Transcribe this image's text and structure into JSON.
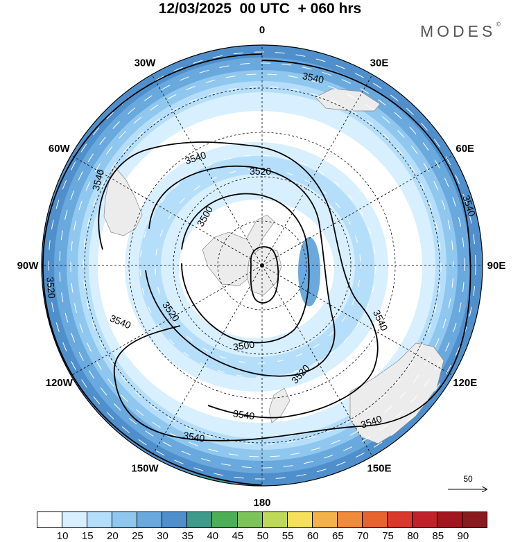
{
  "title": "12/03/2025  00 UTC  + 060 hrs",
  "logo": {
    "text": "MODES",
    "mark": "©"
  },
  "longitude_labels": [
    "0",
    "30E",
    "60E",
    "90E",
    "120E",
    "150E",
    "180",
    "150W",
    "120W",
    "90W",
    "60W",
    "30W"
  ],
  "contour_labels": {
    "c3540": "3540",
    "c3520": "3520",
    "c3500": "3500"
  },
  "reference_vector": {
    "label": "50"
  },
  "legend": {
    "ticks": [
      "10",
      "15",
      "20",
      "25",
      "30",
      "35",
      "40",
      "45",
      "50",
      "55",
      "60",
      "65",
      "70",
      "75",
      "80",
      "85",
      "90"
    ],
    "colors": [
      "#ffffff",
      "#d7efff",
      "#b5defa",
      "#8fc7ee",
      "#6aa9dd",
      "#4f8fcb",
      "#3f9a8c",
      "#4cae55",
      "#7cc35c",
      "#bed957",
      "#f4e05a",
      "#f4b24a",
      "#ef8b3a",
      "#e8642f",
      "#d9382a",
      "#c0212a",
      "#a3161f",
      "#8a1a1d"
    ]
  }
}
